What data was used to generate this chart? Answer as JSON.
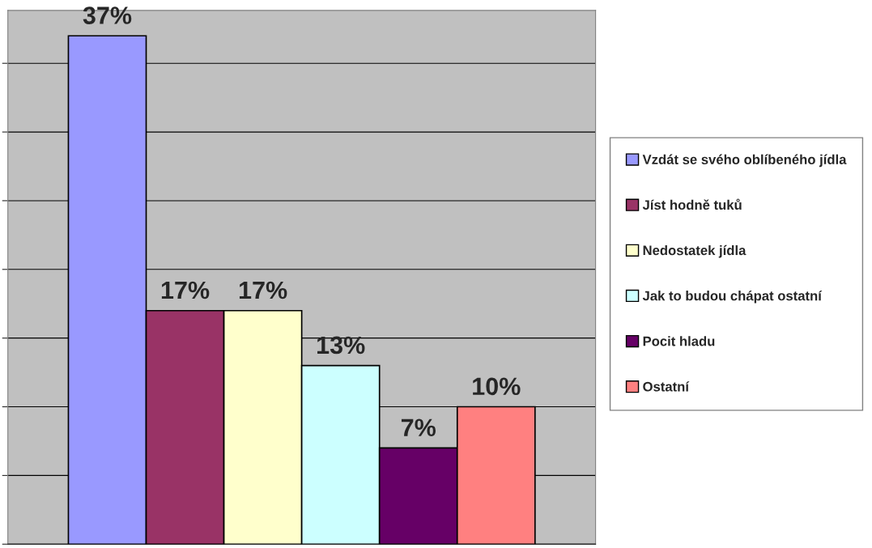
{
  "chart_data": {
    "type": "bar",
    "categories": [
      null
    ],
    "series": [
      {
        "name": "Vzdát se svého oblíbeného jídla",
        "color": "#9999ff",
        "values": [
          37
        ],
        "value_labels": [
          "37%"
        ]
      },
      {
        "name": "Jíst hodně tuků",
        "color": "#993366",
        "values": [
          17
        ],
        "value_labels": [
          "17%"
        ]
      },
      {
        "name": "Nedostatek jídla",
        "color": "#ffffcc",
        "values": [
          17
        ],
        "value_labels": [
          "17%"
        ]
      },
      {
        "name": "Jak to budou chápat ostatní",
        "color": "#ccffff",
        "values": [
          13
        ],
        "value_labels": [
          "13%"
        ]
      },
      {
        "name": "Pocit hladu",
        "color": "#660066",
        "values": [
          7
        ],
        "value_labels": [
          "7%"
        ]
      },
      {
        "name": "Ostatní",
        "color": "#ff8080",
        "values": [
          10
        ],
        "value_labels": [
          "10%"
        ]
      }
    ],
    "grid": "y",
    "legend": "right"
  }
}
